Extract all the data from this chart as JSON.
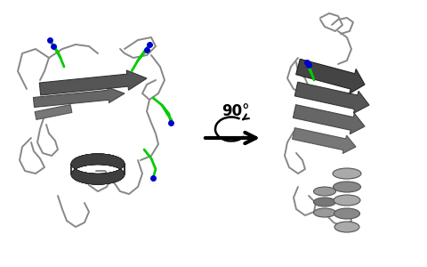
{
  "background_color": "#ffffff",
  "arrow_label": "90°",
  "protein_color": "#888888",
  "loop_color": "#909090",
  "strand_dark": "#3a3a3a",
  "strand_mid": "#606060",
  "strand_light": "#b0b0b0",
  "helix_dark": "#404040",
  "helix_mid": "#707070",
  "helix_light": "#c0c0c0",
  "green_color": "#00cc00",
  "blue_color": "#0000cc",
  "figsize": [
    4.8,
    3.0
  ],
  "dpi": 100
}
